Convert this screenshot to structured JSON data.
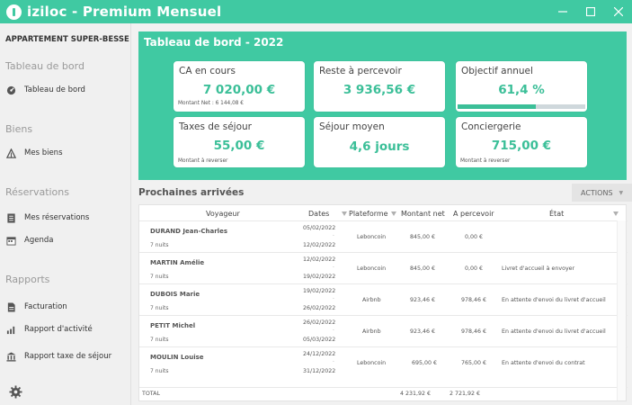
{
  "app": {
    "title": "iziloc - Premium Mensuel"
  },
  "sidebar": {
    "property": "APPARTEMENT SUPER-BESSE",
    "sections": [
      {
        "title": "Tableau de bord",
        "items": [
          {
            "label": "Tableau de bord",
            "icon": "dashboard-icon"
          }
        ]
      },
      {
        "title": "Biens",
        "items": [
          {
            "label": "Mes biens",
            "icon": "tent-icon"
          }
        ]
      },
      {
        "title": "Réservations",
        "items": [
          {
            "label": "Mes réservations",
            "icon": "list-icon"
          },
          {
            "label": "Agenda",
            "icon": "calendar-icon"
          }
        ]
      },
      {
        "title": "Rapports",
        "items": [
          {
            "label": "Facturation",
            "icon": "document-icon"
          },
          {
            "label": "Rapport d'activité",
            "icon": "bar-chart-icon"
          },
          {
            "label": "Rapport taxe de séjour",
            "icon": "bank-icon"
          }
        ]
      }
    ],
    "settings_icon": "gear-icon"
  },
  "dashboard": {
    "title": "Tableau de bord - 2022",
    "cards": {
      "ca": {
        "title": "CA en cours",
        "value": "7 020,00 €",
        "sub": "Montant Net : 6 144,08 €"
      },
      "reste": {
        "title": "Reste à percevoir",
        "value": "3 936,56 €"
      },
      "objectif": {
        "title": "Objectif annuel",
        "value": "61,4 %",
        "progress": 0.614
      },
      "taxes": {
        "title": "Taxes de séjour",
        "value": "55,00 €",
        "sub": "Montant à reverser"
      },
      "sejour": {
        "title": "Séjour moyen",
        "value": "4,6 jours"
      },
      "conciergerie": {
        "title": "Conciergerie",
        "value": "715,00 €",
        "sub": "Montant à reverser"
      }
    }
  },
  "arrivals": {
    "title": "Prochaines arrivées",
    "actions_label": "ACTIONS",
    "headers": {
      "voyageur": "Voyageur",
      "dates": "Dates",
      "plateforme": "Plateforme",
      "net": "Montant net",
      "percevoir": "A percevoir",
      "etat": "État"
    },
    "rows": [
      {
        "name": "DURAND Jean-Charles",
        "nights": "7 nuits",
        "start": "05/02/2022",
        "end": "12/02/2022",
        "platform": "Leboncoin",
        "net": "845,00 €",
        "percevoir": "0,00 €",
        "etat": ""
      },
      {
        "name": "MARTIN Amélie",
        "nights": "7 nuits",
        "start": "12/02/2022",
        "end": "19/02/2022",
        "platform": "Leboncoin",
        "net": "845,00 €",
        "percevoir": "0,00 €",
        "etat": "Livret d'accueil à envoyer"
      },
      {
        "name": "DUBOIS Marie",
        "nights": "7 nuits",
        "start": "19/02/2022",
        "end": "26/02/2022",
        "platform": "Airbnb",
        "net": "923,46 €",
        "percevoir": "978,46 €",
        "etat": "En attente d'envoi du livret d'accueil"
      },
      {
        "name": "PETIT Michel",
        "nights": "7 nuits",
        "start": "26/02/2022",
        "end": "05/03/2022",
        "platform": "Airbnb",
        "net": "923,46 €",
        "percevoir": "978,46 €",
        "etat": "En attente d'envoi du livret d'accueil"
      },
      {
        "name": "MOULIN Louise",
        "nights": "7 nuits",
        "start": "24/12/2022",
        "end": "31/12/2022",
        "platform": "Leboncoin",
        "net": "695,00 €",
        "percevoir": "765,00 €",
        "etat": "En attente d'envoi du contrat"
      }
    ],
    "separator": "-",
    "total": {
      "label": "TOTAL",
      "net": "4 231,92 €",
      "percevoir": "2 721,92 €"
    }
  },
  "colors": {
    "accent": "#40c9a2",
    "value": "#3bbf98"
  }
}
